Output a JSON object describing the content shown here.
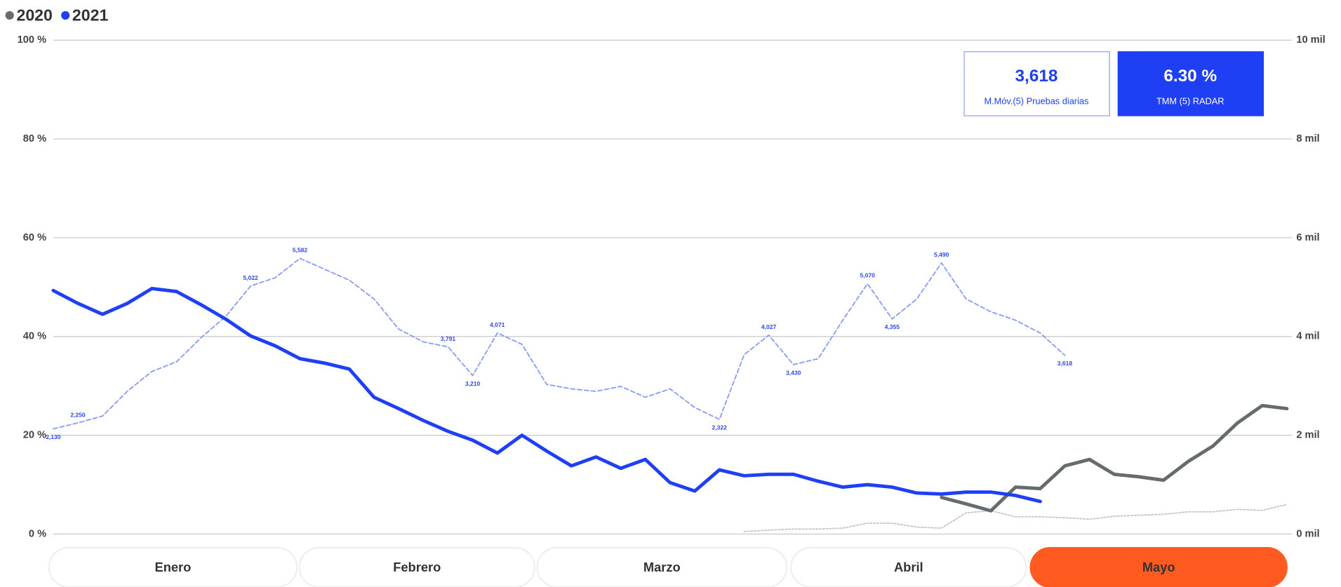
{
  "chart_data": {
    "type": "line",
    "series": [
      {
        "name": "2020",
        "color": "#666b6e",
        "width": 4,
        "values": [
          null,
          null,
          null,
          null,
          null,
          null,
          null,
          null,
          null,
          null,
          null,
          null,
          null,
          null,
          null,
          null,
          null,
          null,
          null,
          null,
          null,
          null,
          null,
          null,
          null,
          null,
          null,
          null,
          null,
          null,
          null,
          null,
          null,
          null,
          null,
          null,
          7.4,
          6.1,
          4.7,
          9.5,
          9.2,
          13.8,
          15.1,
          12.1,
          11.6,
          10.9,
          14.7,
          17.8,
          22.5,
          26.0,
          25.4
        ]
      },
      {
        "name": "2021",
        "color": "#1f3ff5",
        "width": 4,
        "values": [
          49.3,
          46.7,
          44.5,
          46.7,
          49.7,
          49.1,
          46.4,
          43.5,
          40.1,
          38.1,
          35.5,
          34.6,
          33.4,
          27.7,
          25.4,
          23.0,
          20.8,
          19.0,
          16.4,
          20.0,
          16.8,
          13.8,
          15.6,
          13.3,
          15.1,
          10.4,
          8.7,
          13.0,
          11.8,
          12.1,
          12.1,
          10.7,
          9.5,
          10.0,
          9.5,
          8.3,
          8.1,
          8.5,
          8.5,
          7.8,
          6.6,
          null,
          null,
          null,
          null,
          null,
          null,
          null,
          null,
          null,
          null
        ]
      },
      {
        "color": "#8a9cf5",
        "width": 1.5,
        "dash": "5 3",
        "axis": "y2",
        "values": [
          2.13,
          2.25,
          2.39,
          2.89,
          3.29,
          3.49,
          3.98,
          4.41,
          5.022,
          5.19,
          5.582,
          5.36,
          5.14,
          4.76,
          4.15,
          3.89,
          3.791,
          3.21,
          4.071,
          3.84,
          3.03,
          2.94,
          2.89,
          2.99,
          2.77,
          2.94,
          2.56,
          2.322,
          3.63,
          4.027,
          3.43,
          3.55,
          4.33,
          5.07,
          4.355,
          4.76,
          5.49,
          4.76,
          4.5,
          4.33,
          4.07,
          3.618,
          null,
          null,
          null,
          null,
          null,
          null,
          null,
          null,
          null
        ],
        "value_labels": [
          "2,130",
          "2,250",
          null,
          null,
          null,
          null,
          null,
          null,
          "5,022",
          null,
          "5,582",
          null,
          null,
          null,
          null,
          null,
          "3,791",
          "3,210",
          "4,071",
          null,
          null,
          null,
          null,
          null,
          null,
          null,
          null,
          "2,322",
          null,
          "4,027",
          "3,430",
          null,
          null,
          "5,070",
          "4,355",
          null,
          "5,490",
          null,
          null,
          null,
          null,
          "3,618",
          null,
          null,
          null,
          null,
          null,
          null,
          null,
          null,
          null
        ]
      },
      {
        "color": "#c4c6c8",
        "width": 1.5,
        "dash": "2 2",
        "axis": "y2",
        "values": [
          null,
          null,
          null,
          null,
          null,
          null,
          null,
          null,
          null,
          null,
          null,
          null,
          null,
          null,
          null,
          null,
          null,
          null,
          null,
          null,
          null,
          null,
          null,
          null,
          null,
          null,
          null,
          null,
          0.05,
          0.08,
          0.1,
          0.1,
          0.12,
          0.22,
          0.22,
          0.14,
          0.12,
          0.43,
          0.47,
          0.35,
          0.35,
          0.33,
          0.3,
          0.36,
          0.38,
          0.4,
          0.45,
          0.45,
          0.5,
          0.48,
          0.6
        ]
      }
    ],
    "ylim": [
      0,
      100
    ],
    "yticks": [
      {
        "value": 0,
        "label": "0 %"
      },
      {
        "value": 20,
        "label": "20 %"
      },
      {
        "value": 40,
        "label": "40 %"
      },
      {
        "value": 60,
        "label": "60 %"
      },
      {
        "value": 80,
        "label": "80 %"
      },
      {
        "value": 100,
        "label": "100 %"
      }
    ],
    "y2lim": [
      0,
      10
    ],
    "y2ticks": [
      {
        "value": 0,
        "label": "0 mil"
      },
      {
        "value": 2,
        "label": "2 mil"
      },
      {
        "value": 4,
        "label": "4 mil"
      },
      {
        "value": 6,
        "label": "6 mil"
      },
      {
        "value": 8,
        "label": "8 mil"
      },
      {
        "value": 10,
        "label": "10 mil"
      }
    ],
    "grid": true,
    "legend": "top-left",
    "cards": [
      {
        "value": "3,618",
        "label": "M.Móv.(5) Pruebas diarias",
        "style": "outline"
      },
      {
        "value": "6.30 %",
        "label": "TMM (5) RADAR",
        "style": "filled"
      }
    ],
    "periods": [
      "Enero",
      "Febrero",
      "Marzo",
      "Abril",
      "Mayo"
    ],
    "selected_period": 4
  }
}
